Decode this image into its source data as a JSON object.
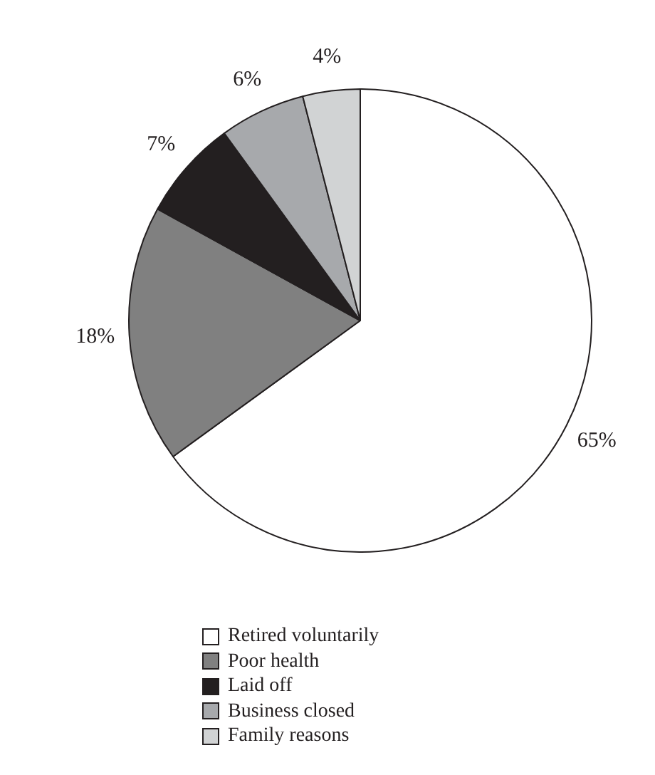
{
  "chart_data": {
    "type": "pie",
    "categories": [
      "Retired voluntarily",
      "Poor health",
      "Laid off",
      "Business closed",
      "Family reasons"
    ],
    "values": [
      65,
      18,
      7,
      6,
      4
    ],
    "colors": [
      "#ffffff",
      "#808080",
      "#231f20",
      "#a7a9ac",
      "#d1d3d4"
    ],
    "value_labels": [
      "65%",
      "18%",
      "7%",
      "6%",
      "4%"
    ],
    "legend": "bottom"
  }
}
